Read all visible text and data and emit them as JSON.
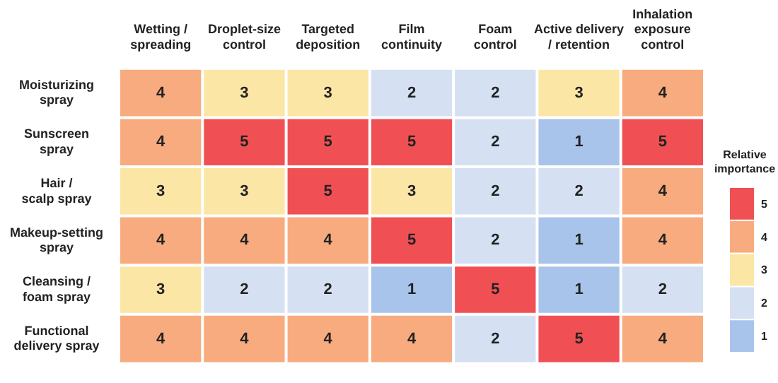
{
  "chart_data": {
    "type": "heatmap",
    "categories": [
      "Wetting /\nspreading",
      "Droplet-size\ncontrol",
      "Targeted\ndeposition",
      "Film\ncontinuity",
      "Foam\ncontrol",
      "Active delivery\n/ retention",
      "Inhalation\nexposure\ncontrol"
    ],
    "y_categories": [
      "Moisturizing\nspray",
      "Sunscreen\nspray",
      "Hair /\nscalp spray",
      "Makeup-setting\nspray",
      "Cleansing /\nfoam spray",
      "Functional\ndelivery spray"
    ],
    "cells": [
      [
        4,
        3,
        3,
        2,
        2,
        3,
        4
      ],
      [
        4,
        5,
        5,
        5,
        2,
        1,
        5
      ],
      [
        3,
        3,
        5,
        3,
        2,
        2,
        4
      ],
      [
        4,
        4,
        4,
        5,
        2,
        1,
        4
      ],
      [
        3,
        2,
        2,
        1,
        5,
        1,
        2
      ],
      [
        4,
        4,
        4,
        4,
        2,
        5,
        4
      ]
    ],
    "clabel": "Relative\nimportance",
    "clim": [
      0.5,
      5.5
    ],
    "cticks": [
      1,
      2,
      3,
      4,
      5
    ],
    "data_labels": true
  }
}
